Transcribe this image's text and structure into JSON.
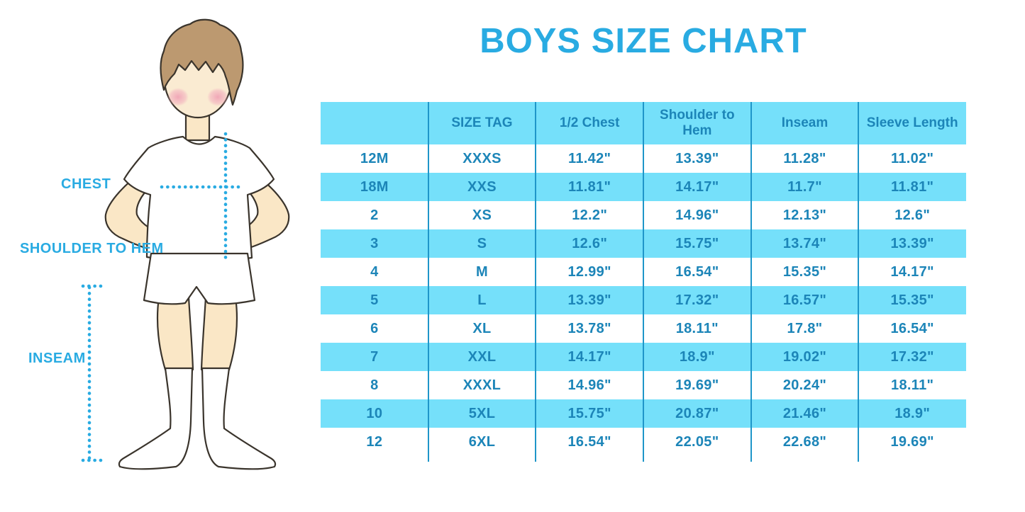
{
  "title": "BOYS SIZE CHART",
  "colors": {
    "accent_blue": "#29ABE2",
    "table_band": "#75E0FA",
    "table_line": "#1F96C9",
    "table_text": "#1C85B8",
    "skin": "#FAE7C6",
    "hair": "#BC9970",
    "blush": "#F2AEBD",
    "outline": "#3A342C"
  },
  "figure": {
    "labels": {
      "chest": "CHEST",
      "shoulder_to_hem": "SHOULDER TO HEM",
      "inseam": "INSEAM"
    }
  },
  "chart_data": {
    "type": "table",
    "title": "BOYS SIZE CHART",
    "columns": [
      "",
      "SIZE TAG",
      "1/2 Chest",
      "Shoulder to Hem",
      "Inseam",
      "Sleeve Length"
    ],
    "rows": [
      [
        "12M",
        "XXXS",
        "11.42\"",
        "13.39\"",
        "11.28\"",
        "11.02\""
      ],
      [
        "18M",
        "XXS",
        "11.81\"",
        "14.17\"",
        "11.7\"",
        "11.81\""
      ],
      [
        "2",
        "XS",
        "12.2\"",
        "14.96\"",
        "12.13\"",
        "12.6\""
      ],
      [
        "3",
        "S",
        "12.6\"",
        "15.75\"",
        "13.74\"",
        "13.39\""
      ],
      [
        "4",
        "M",
        "12.99\"",
        "16.54\"",
        "15.35\"",
        "14.17\""
      ],
      [
        "5",
        "L",
        "13.39\"",
        "17.32\"",
        "16.57\"",
        "15.35\""
      ],
      [
        "6",
        "XL",
        "13.78\"",
        "18.11\"",
        "17.8\"",
        "16.54\""
      ],
      [
        "7",
        "XXL",
        "14.17\"",
        "18.9\"",
        "19.02\"",
        "17.32\""
      ],
      [
        "8",
        "XXXL",
        "14.96\"",
        "19.69\"",
        "20.24\"",
        "18.11\""
      ],
      [
        "10",
        "5XL",
        "15.75\"",
        "20.87\"",
        "21.46\"",
        "18.9\""
      ],
      [
        "12",
        "6XL",
        "16.54\"",
        "22.05\"",
        "22.68\"",
        "19.69\""
      ]
    ],
    "layout": {
      "header_background": "#75E0FA",
      "alternating_row_background": [
        "#FFFFFF",
        "#75E0FA"
      ],
      "column_dividers": true,
      "row_dividers": false
    }
  }
}
